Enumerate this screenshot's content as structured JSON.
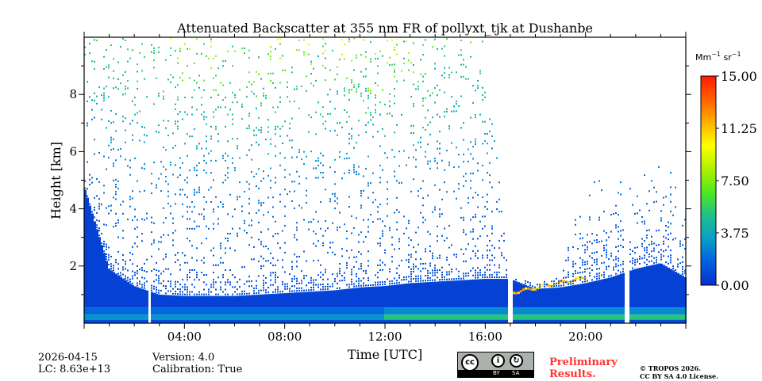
{
  "chart_data": {
    "type": "heatmap",
    "title": "Attenuated Backscatter at 355 nm FR of pollyxt_tjk at Dushanbe",
    "xlabel": "Time [UTC]",
    "ylabel": "Height [km]",
    "xlim_hours": [
      0,
      24
    ],
    "ylim": [
      0,
      10
    ],
    "x_ticks": [
      {
        "hour": 4,
        "label": "04:00"
      },
      {
        "hour": 8,
        "label": "08:00"
      },
      {
        "hour": 12,
        "label": "12:00"
      },
      {
        "hour": 16,
        "label": "16:00"
      },
      {
        "hour": 20,
        "label": "20:00"
      }
    ],
    "y_ticks": [
      {
        "value": 2,
        "label": "2"
      },
      {
        "value": 4,
        "label": "4"
      },
      {
        "value": 6,
        "label": "6"
      },
      {
        "value": 8,
        "label": "8"
      }
    ],
    "colorbar": {
      "unit_label": "Mm",
      "unit_exp1": "−1",
      "unit_mid": " sr",
      "unit_exp2": "−1",
      "range": [
        0,
        15
      ],
      "ticks": [
        "0.00",
        "3.75",
        "7.50",
        "11.25",
        "15.00"
      ],
      "colormap": [
        "#0a2fd0",
        "#0060e0",
        "#0a9fc8",
        "#20c08a",
        "#50e820",
        "#b0f000",
        "#ffff00",
        "#ffb000",
        "#ff6000",
        "#ff1a00"
      ]
    },
    "hourly_layer_top_km": [
      4.8,
      1.9,
      1.3,
      1.0,
      0.95,
      0.95,
      0.95,
      1.0,
      1.05,
      1.1,
      1.15,
      1.25,
      1.3,
      1.4,
      1.45,
      1.5,
      1.55,
      1.55,
      1.2,
      1.25,
      1.4,
      1.6,
      1.9,
      2.1,
      1.6
    ],
    "hourly_noise_top_km": [
      10,
      10,
      10,
      10,
      10,
      10,
      10,
      10,
      10,
      10,
      10,
      10,
      10,
      10,
      10,
      10,
      10,
      1.6,
      1.5,
      1.6,
      5.0,
      5.5,
      5.5,
      5.5,
      5.0
    ],
    "elevated_layer": {
      "start_hour": 17.0,
      "end_hour": 20.0,
      "height_km_start": 1.05,
      "height_km_end": 1.6,
      "value": 9.5
    },
    "data_gaps_hours": [
      [
        2.52,
        2.66
      ],
      [
        16.95,
        17.12
      ],
      [
        21.6,
        21.76
      ]
    ]
  },
  "footer": {
    "date": "2026-04-15",
    "lc": "LC: 8.63e+13",
    "version": "Version: 4.0",
    "calibration": "Calibration: True",
    "preliminary_line1": "Preliminary",
    "preliminary_line2": "Results.",
    "copyright_line1": "© TROPOS 2026.",
    "copyright_line2": "CC BY SA 4.0 License.",
    "license_badge": {
      "cc": "cc",
      "by": "BY",
      "sa": "SA"
    }
  }
}
